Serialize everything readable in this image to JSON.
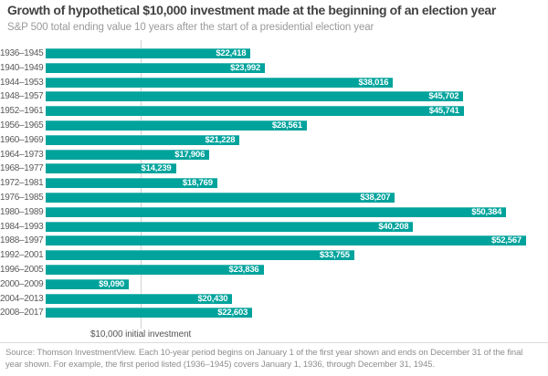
{
  "header": {
    "title": "Growth of hypothetical $10,000 investment made at the beginning of an election year",
    "subtitle": "S&P 500 total ending value 10 years after the start of a presidential election year"
  },
  "chart_data": {
    "type": "bar",
    "orientation": "horizontal",
    "title": "Growth of hypothetical $10,000 investment made at the beginning of an election year",
    "subtitle": "S&P 500 total ending value 10 years after the start of a presidential election year",
    "categories": [
      "1936–1945",
      "1940–1949",
      "1944–1953",
      "1948–1957",
      "1952–1961",
      "1956–1965",
      "1960–1969",
      "1964–1973",
      "1968–1977",
      "1972–1981",
      "1976–1985",
      "1980–1989",
      "1984–1993",
      "1988–1997",
      "1992–2001",
      "1996–2005",
      "2000–2009",
      "2004–2013",
      "2008–2017"
    ],
    "values": [
      22418,
      23992,
      38016,
      45702,
      45741,
      28561,
      21228,
      17906,
      14239,
      18769,
      38207,
      50384,
      40208,
      52567,
      33755,
      23836,
      9090,
      20430,
      22603
    ],
    "value_labels": [
      "$22,418",
      "$23,992",
      "$38,016",
      "$45,702",
      "$45,741",
      "$28,561",
      "$21,228",
      "$17,906",
      "$14,239",
      "$18,769",
      "$38,207",
      "$50,384",
      "$40,208",
      "$52,567",
      "$33,755",
      "$23,836",
      "$9,090",
      "$20,430",
      "$22,603"
    ],
    "xlim": [
      0,
      52567
    ],
    "grid": "single-vertical-reference",
    "legend": "none",
    "reference_line": {
      "value": 10000,
      "label": "$10,000 initial investment"
    },
    "bar_color": "#00A39C",
    "value_label_color": "#FFFFFF",
    "gridline_color": "#D2D2D2"
  },
  "footer": {
    "source": "Source: Thomson InvestmentView. Each 10-year period begins on January 1 of the first year shown and ends on December 31 of the final year shown. For example, the first period listed (1936–1945) covers January 1, 1936, through December 31, 1945."
  }
}
